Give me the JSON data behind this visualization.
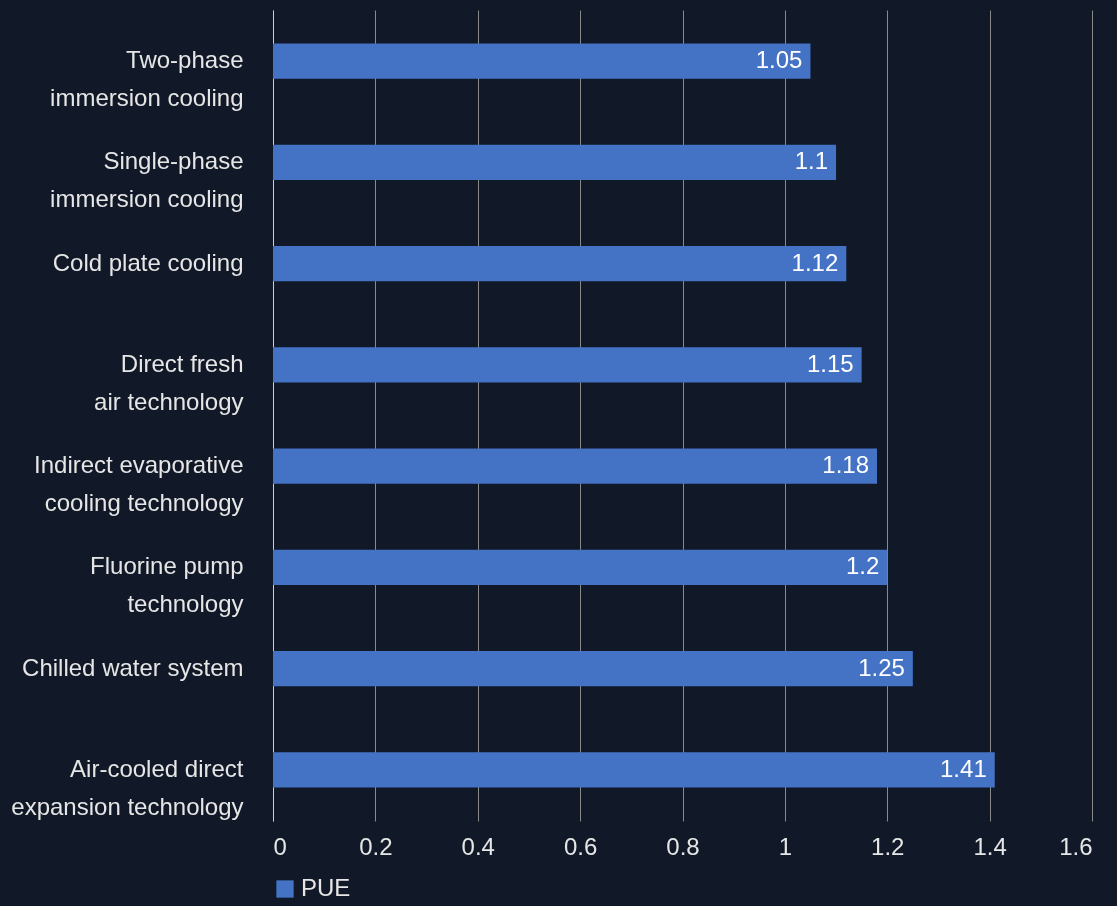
{
  "chart_data": {
    "type": "bar",
    "orientation": "horizontal",
    "categories": [
      "Two-phase\nimmersion cooling",
      "Single-phase\nimmersion cooling",
      "Cold plate cooling",
      "Direct fresh\nair technology",
      "Indirect evaporative\ncooling technology",
      "Fluorine pump\ntechnology",
      "Chilled water system",
      "Air-cooled direct\nexpansion technology"
    ],
    "series": [
      {
        "name": "PUE",
        "color": "#4472c4",
        "values": [
          1.05,
          1.1,
          1.12,
          1.15,
          1.18,
          1.2,
          1.25,
          1.41
        ]
      }
    ],
    "xlim": [
      0,
      1.6
    ],
    "xticks": [
      0,
      0.2,
      0.4,
      0.6,
      0.8,
      1,
      1.2,
      1.4,
      1.6
    ],
    "grid": "x",
    "legend": "bottom",
    "data_labels": true
  }
}
